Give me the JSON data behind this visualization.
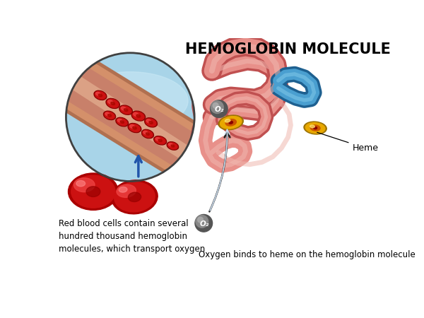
{
  "title": "HEMOGLOBIN MOLECULE",
  "title_fontsize": 15,
  "background_color": "#ffffff",
  "caption_left": "Red blood cells contain several\nhundred thousand hemoglobin\nmolecules, which transport oxygen",
  "caption_right": "Oxygen binds to heme on the hemoglobin molecule",
  "caption_fontsize": 8.5,
  "label_heme": "Heme",
  "label_o2": "O₂",
  "pink_color": "#E8908A",
  "pink_light": "#F0B8B0",
  "pink_dark": "#C05050",
  "blue_color": "#4A9FD0",
  "blue_light": "#80C8E8",
  "blue_dark": "#1E6090",
  "red_cell_dark": "#AA0000",
  "red_cell_mid": "#CC2222",
  "red_cell_light": "#EE5555",
  "heme_gold": "#E8A800",
  "heme_orange": "#CC5500",
  "heme_dark": "#9B7200",
  "o2_dark": "#555555",
  "o2_mid": "#888888",
  "o2_light": "#AAAAAA",
  "vessel_skin": "#D4906A",
  "vessel_skin_light": "#E8B898",
  "vessel_skin_dark": "#B07050",
  "vessel_bg": "#A8D4E8",
  "vessel_bg_top": "#C8E8F5",
  "circle_border": "#404040",
  "arrow_blue": "#2255AA",
  "arrow_dark": "#222222"
}
